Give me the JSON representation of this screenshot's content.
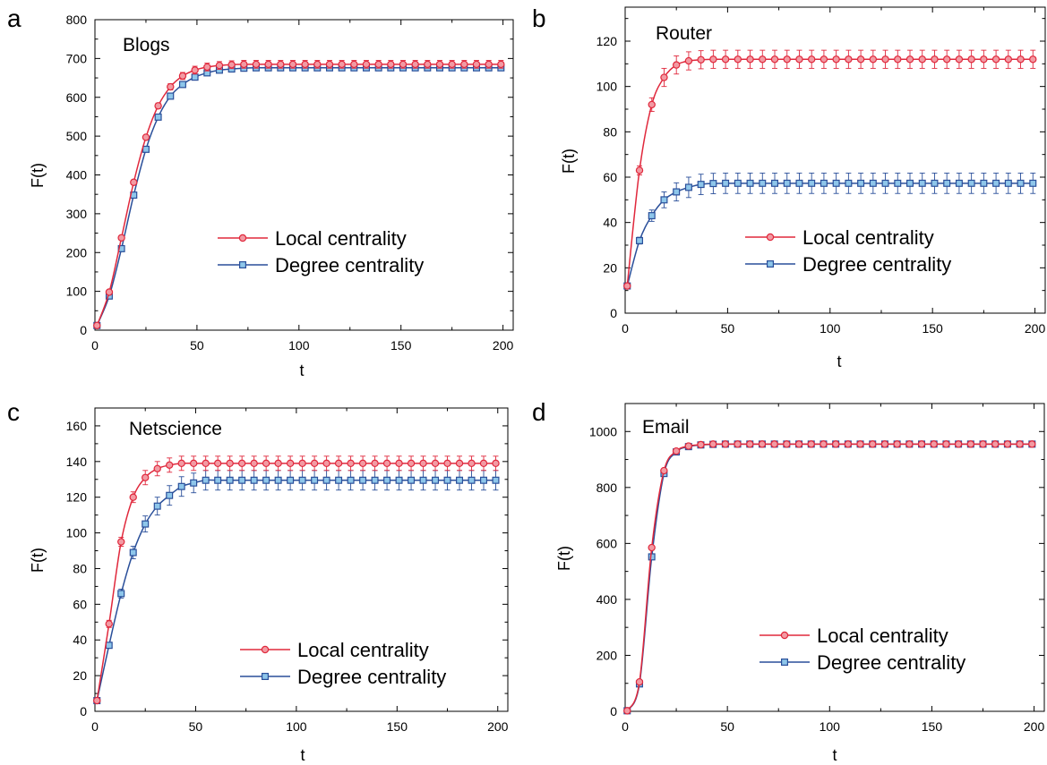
{
  "colors": {
    "local": "#e0283c",
    "local_marker_fill": "#f29aa3",
    "degree": "#2a4f9a",
    "degree_marker_fill": "#8ec6ea"
  },
  "chart_data": [
    {
      "type": "line",
      "panel_letter": "a",
      "title": "Blogs",
      "xlabel": "t",
      "ylabel": "F(t)",
      "xlim": [
        0,
        205
      ],
      "ylim": [
        0,
        800
      ],
      "xticks": [
        0,
        50,
        100,
        150,
        200
      ],
      "yticks": [
        0,
        100,
        200,
        300,
        400,
        500,
        600,
        700,
        800
      ],
      "legend_position": "center-right",
      "x": [
        1,
        7,
        13,
        19,
        25,
        31,
        37,
        43,
        49,
        55,
        61,
        67,
        73,
        79,
        85,
        91,
        97,
        103,
        109,
        115,
        121,
        127,
        133,
        139,
        145,
        151,
        157,
        163,
        169,
        175,
        181,
        187,
        193,
        199
      ],
      "series": [
        {
          "name": "Local centrality",
          "key": "local",
          "values": [
            12,
            98,
            238,
            381,
            497,
            578,
            627,
            655,
            670,
            678,
            682,
            684,
            685,
            685,
            685,
            685,
            685,
            685,
            685,
            685,
            685,
            685,
            685,
            685,
            685,
            685,
            685,
            685,
            685,
            685,
            685,
            685,
            685,
            685
          ],
          "errors": [
            2,
            4,
            5,
            6,
            6,
            7,
            8,
            9,
            10,
            10,
            10,
            10,
            10,
            10,
            10,
            10,
            10,
            10,
            10,
            10,
            10,
            10,
            10,
            10,
            10,
            10,
            10,
            10,
            10,
            10,
            10,
            10,
            10,
            10
          ]
        },
        {
          "name": "Degree centrality",
          "key": "degree",
          "values": [
            12,
            88,
            210,
            348,
            466,
            549,
            603,
            633,
            652,
            663,
            670,
            673,
            675,
            676,
            676,
            676,
            676,
            676,
            676,
            676,
            676,
            676,
            676,
            676,
            676,
            676,
            676,
            676,
            676,
            676,
            676,
            676,
            676,
            676
          ],
          "errors": [
            2,
            4,
            5,
            6,
            7,
            7,
            7,
            7,
            7,
            7,
            7,
            7,
            7,
            7,
            7,
            7,
            7,
            7,
            7,
            7,
            7,
            7,
            7,
            7,
            7,
            7,
            7,
            7,
            7,
            7,
            7,
            7,
            7,
            7
          ]
        }
      ]
    },
    {
      "type": "line",
      "panel_letter": "b",
      "title": "Router",
      "xlabel": "t",
      "ylabel": "F(t)",
      "xlim": [
        0,
        205
      ],
      "ylim": [
        0,
        135
      ],
      "xticks": [
        0,
        50,
        100,
        150,
        200
      ],
      "yticks": [
        0,
        20,
        40,
        60,
        80,
        100,
        120
      ],
      "legend_position": "center-right",
      "x": [
        1,
        7,
        13,
        19,
        25,
        31,
        37,
        43,
        49,
        55,
        61,
        67,
        73,
        79,
        85,
        91,
        97,
        103,
        109,
        115,
        121,
        127,
        133,
        139,
        145,
        151,
        157,
        163,
        169,
        175,
        181,
        187,
        193,
        199
      ],
      "series": [
        {
          "name": "Local centrality",
          "key": "local",
          "values": [
            12,
            63,
            92,
            104,
            109.5,
            111.3,
            111.8,
            112,
            112,
            112,
            112,
            112,
            112,
            112,
            112,
            112,
            112,
            112,
            112,
            112,
            112,
            112,
            112,
            112,
            112,
            112,
            112,
            112,
            112,
            112,
            112,
            112,
            112,
            112
          ],
          "errors": [
            1,
            2,
            3,
            4,
            4,
            4,
            4,
            4,
            4,
            4,
            4,
            4,
            4,
            4,
            4,
            4,
            4,
            4,
            4,
            4,
            4,
            4,
            4,
            4,
            4,
            4,
            4,
            4,
            4,
            4,
            4,
            4,
            4,
            4
          ]
        },
        {
          "name": "Degree centrality",
          "key": "degree",
          "values": [
            12,
            32,
            43,
            50,
            53.5,
            55.5,
            56.8,
            57.2,
            57.3,
            57.3,
            57.3,
            57.3,
            57.3,
            57.3,
            57.3,
            57.3,
            57.3,
            57.3,
            57.3,
            57.3,
            57.3,
            57.3,
            57.3,
            57.3,
            57.3,
            57.3,
            57.3,
            57.3,
            57.3,
            57.3,
            57.3,
            57.3,
            57.3,
            57.3
          ],
          "errors": [
            1,
            1.5,
            2.5,
            3.5,
            4,
            4.5,
            4.5,
            4.5,
            4.5,
            4.5,
            4.5,
            4.5,
            4.5,
            4.5,
            4.5,
            4.5,
            4.5,
            4.5,
            4.5,
            4.5,
            4.5,
            4.5,
            4.5,
            4.5,
            4.5,
            4.5,
            4.5,
            4.5,
            4.5,
            4.5,
            4.5,
            4.5,
            4.5,
            4.5
          ]
        }
      ]
    },
    {
      "type": "line",
      "panel_letter": "c",
      "title": "Netscience",
      "xlabel": "t",
      "ylabel": "F(t)",
      "xlim": [
        0,
        205
      ],
      "ylim": [
        0,
        170
      ],
      "xticks": [
        0,
        50,
        100,
        150,
        200
      ],
      "yticks": [
        0,
        20,
        40,
        60,
        80,
        100,
        120,
        140,
        160
      ],
      "legend_position": "bottom-right",
      "x": [
        1,
        7,
        13,
        19,
        25,
        31,
        37,
        43,
        49,
        55,
        61,
        67,
        73,
        79,
        85,
        91,
        97,
        103,
        109,
        115,
        121,
        127,
        133,
        139,
        145,
        151,
        157,
        163,
        169,
        175,
        181,
        187,
        193,
        199
      ],
      "series": [
        {
          "name": "Local centrality",
          "key": "local",
          "values": [
            6,
            49,
            95,
            120,
            131,
            136,
            138,
            139,
            139,
            139,
            139,
            139,
            139,
            139,
            139,
            139,
            139,
            139,
            139,
            139,
            139,
            139,
            139,
            139,
            139,
            139,
            139,
            139,
            139,
            139,
            139,
            139,
            139,
            139
          ],
          "errors": [
            1,
            2,
            2.5,
            3,
            4,
            4,
            4,
            4,
            4,
            4,
            4,
            4,
            4,
            4,
            4,
            4,
            4,
            4,
            4,
            4,
            4,
            4,
            4,
            4,
            4,
            4,
            4,
            4,
            4,
            4,
            4,
            4,
            4,
            4
          ]
        },
        {
          "name": "Degree centrality",
          "key": "degree",
          "values": [
            6,
            37,
            66,
            89,
            105,
            115,
            121,
            126,
            128,
            129.5,
            129.5,
            129.5,
            129.5,
            129.5,
            129.5,
            129.5,
            129.5,
            129.5,
            129.5,
            129.5,
            129.5,
            129.5,
            129.5,
            129.5,
            129.5,
            129.5,
            129.5,
            129.5,
            129.5,
            129.5,
            129.5,
            129.5,
            129.5,
            129.5
          ],
          "errors": [
            1,
            1.5,
            2.5,
            3.5,
            4.5,
            5,
            5.5,
            5.5,
            5.5,
            5.5,
            5.5,
            5.5,
            5.5,
            5.5,
            5.5,
            5.5,
            5.5,
            5.5,
            5.5,
            5.5,
            5.5,
            5.5,
            5.5,
            5.5,
            5.5,
            5.5,
            5.5,
            5.5,
            5.5,
            5.5,
            5.5,
            5.5,
            5.5,
            5.5
          ]
        }
      ]
    },
    {
      "type": "line",
      "panel_letter": "d",
      "title": "Email",
      "xlabel": "t",
      "ylabel": "F(t)",
      "xlim": [
        0,
        205
      ],
      "ylim": [
        0,
        1100
      ],
      "xticks": [
        0,
        50,
        100,
        150,
        200
      ],
      "yticks": [
        0,
        200,
        400,
        600,
        800,
        1000
      ],
      "legend_position": "bottom-right",
      "x": [
        1,
        7,
        13,
        19,
        25,
        31,
        37,
        43,
        49,
        55,
        61,
        67,
        73,
        79,
        85,
        91,
        97,
        103,
        109,
        115,
        121,
        127,
        133,
        139,
        145,
        151,
        157,
        163,
        169,
        175,
        181,
        187,
        193,
        199
      ],
      "series": [
        {
          "name": "Local centrality",
          "key": "local",
          "values": [
            2,
            105,
            585,
            860,
            930,
            948,
            953,
            955,
            955,
            955,
            955,
            955,
            955,
            955,
            955,
            955,
            955,
            955,
            955,
            955,
            955,
            955,
            955,
            955,
            955,
            955,
            955,
            955,
            955,
            955,
            955,
            955,
            955,
            955
          ],
          "errors": [
            1,
            3,
            4,
            5,
            5,
            5,
            5,
            5,
            5,
            5,
            5,
            5,
            5,
            5,
            5,
            5,
            5,
            5,
            5,
            5,
            5,
            5,
            5,
            5,
            5,
            5,
            5,
            5,
            5,
            5,
            5,
            5,
            5,
            5
          ]
        },
        {
          "name": "Degree centrality",
          "key": "degree",
          "values": [
            2,
            98,
            552,
            850,
            927,
            946,
            952,
            954,
            955,
            955,
            955,
            955,
            955,
            955,
            955,
            955,
            955,
            955,
            955,
            955,
            955,
            955,
            955,
            955,
            955,
            955,
            955,
            955,
            955,
            955,
            955,
            955,
            955,
            955
          ],
          "errors": [
            1,
            3,
            4,
            5,
            5,
            5,
            5,
            5,
            5,
            5,
            5,
            5,
            5,
            5,
            5,
            5,
            5,
            5,
            5,
            5,
            5,
            5,
            5,
            5,
            5,
            5,
            5,
            5,
            5,
            5,
            5,
            5,
            5,
            5
          ]
        }
      ]
    }
  ]
}
